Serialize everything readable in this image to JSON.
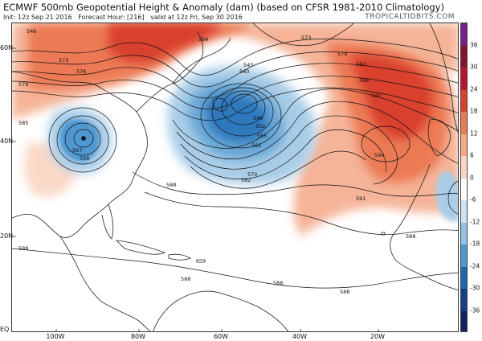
{
  "header": {
    "title": "ECMWF 500mb Geopotential Height & Anomaly (dam) (based on CFSR 1981-2010 Climatology)",
    "init": "Init: 12z Sep 21 2016",
    "forecast_hour": "Forecast Hour: [216]",
    "valid": "valid at 12z Fri, Sep 30 2016",
    "brand": "TROPICALTIDBITS.COM"
  },
  "axes": {
    "lat_labels": [
      "60N",
      "40N",
      "20N",
      "EQ"
    ],
    "lon_labels": [
      "100W",
      "80W",
      "60W",
      "40W",
      "20W"
    ]
  },
  "colorbar": {
    "ticks": [
      "36",
      "30",
      "24",
      "18",
      "12",
      "6",
      "0",
      "-6",
      "-12",
      "-18",
      "-24",
      "-30",
      "-36"
    ],
    "colors": [
      "#7a1f8a",
      "#8a0f2f",
      "#b8142f",
      "#d9412f",
      "#ec7a55",
      "#f5a989",
      "#fbd5c2",
      "#ffffff",
      "#cfe2f2",
      "#93c2e3",
      "#4f97cf",
      "#2166ac",
      "#173f87",
      "#0f2460"
    ]
  },
  "contours": {
    "labels": [
      "546",
      "564",
      "573",
      "576",
      "579",
      "585",
      "567",
      "558",
      "561",
      "570",
      "582",
      "540",
      "543",
      "549",
      "552",
      "555",
      "591",
      "594",
      "588"
    ]
  },
  "anomaly_colors": {
    "positive_strong": "#d9412f",
    "positive_mid": "#ec7a55",
    "positive_light": "#f5b498",
    "positive_faint": "#fbd9c8",
    "negative_strong": "#2f78bd",
    "negative_mid": "#6aa7d6",
    "negative_light": "#a9cde8",
    "negative_faint": "#d8e8f4"
  }
}
